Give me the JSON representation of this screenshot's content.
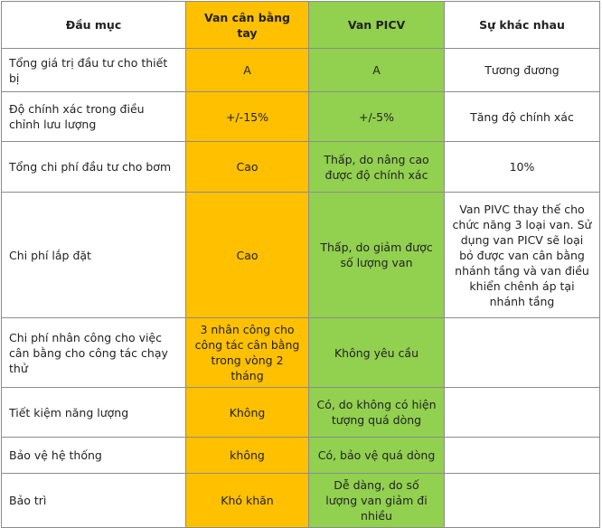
{
  "table": {
    "headers": [
      "Đầu mục",
      "Van cân bằng tay",
      "Van PICV",
      "Sự khác nhau"
    ],
    "rows": [
      [
        "Tổng giá trị đầu tư cho thiết bị",
        "A",
        "A",
        "Tương đương"
      ],
      [
        "Độ chính xác trong điều chỉnh lưu lượng",
        "+/-15%",
        "+/-5%",
        "Tăng độ chính xác"
      ],
      [
        "Tổng chi phí đầu tư cho bơm",
        "Cao",
        "Thấp, do nâng cao được độ chính xác",
        "10%"
      ],
      [
        "Chi phí lắp đặt",
        "Cao",
        "Thấp, do giảm được số lượng van",
        "Van PIVC thay thế cho chức năng 3 loại van. Sử dụng van PICV sẽ loại bỏ được van cân bằng nhánh tầng và van điều khiển chênh áp tại nhánh tầng"
      ],
      [
        "Chi phí nhân công cho việc cân bằng cho công tác chạy thử",
        "3 nhân công cho công tác cân bằng trong vòng 2 tháng",
        "Không yêu cầu",
        ""
      ],
      [
        "Tiết kiệm năng lượng",
        "Không",
        "Có, do không có hiện tượng quá dòng",
        ""
      ],
      [
        "Bảo vệ hệ thống",
        "không",
        "Có, bảo vệ quá dòng",
        ""
      ],
      [
        "Bảo trì",
        "Khó khăn",
        "Dễ dàng, do số lượng van giảm đi nhiều",
        ""
      ]
    ]
  },
  "colors": {
    "manual_valve_column": "#ffc000",
    "picv_column": "#92d050",
    "border": "#8c8c8c"
  }
}
